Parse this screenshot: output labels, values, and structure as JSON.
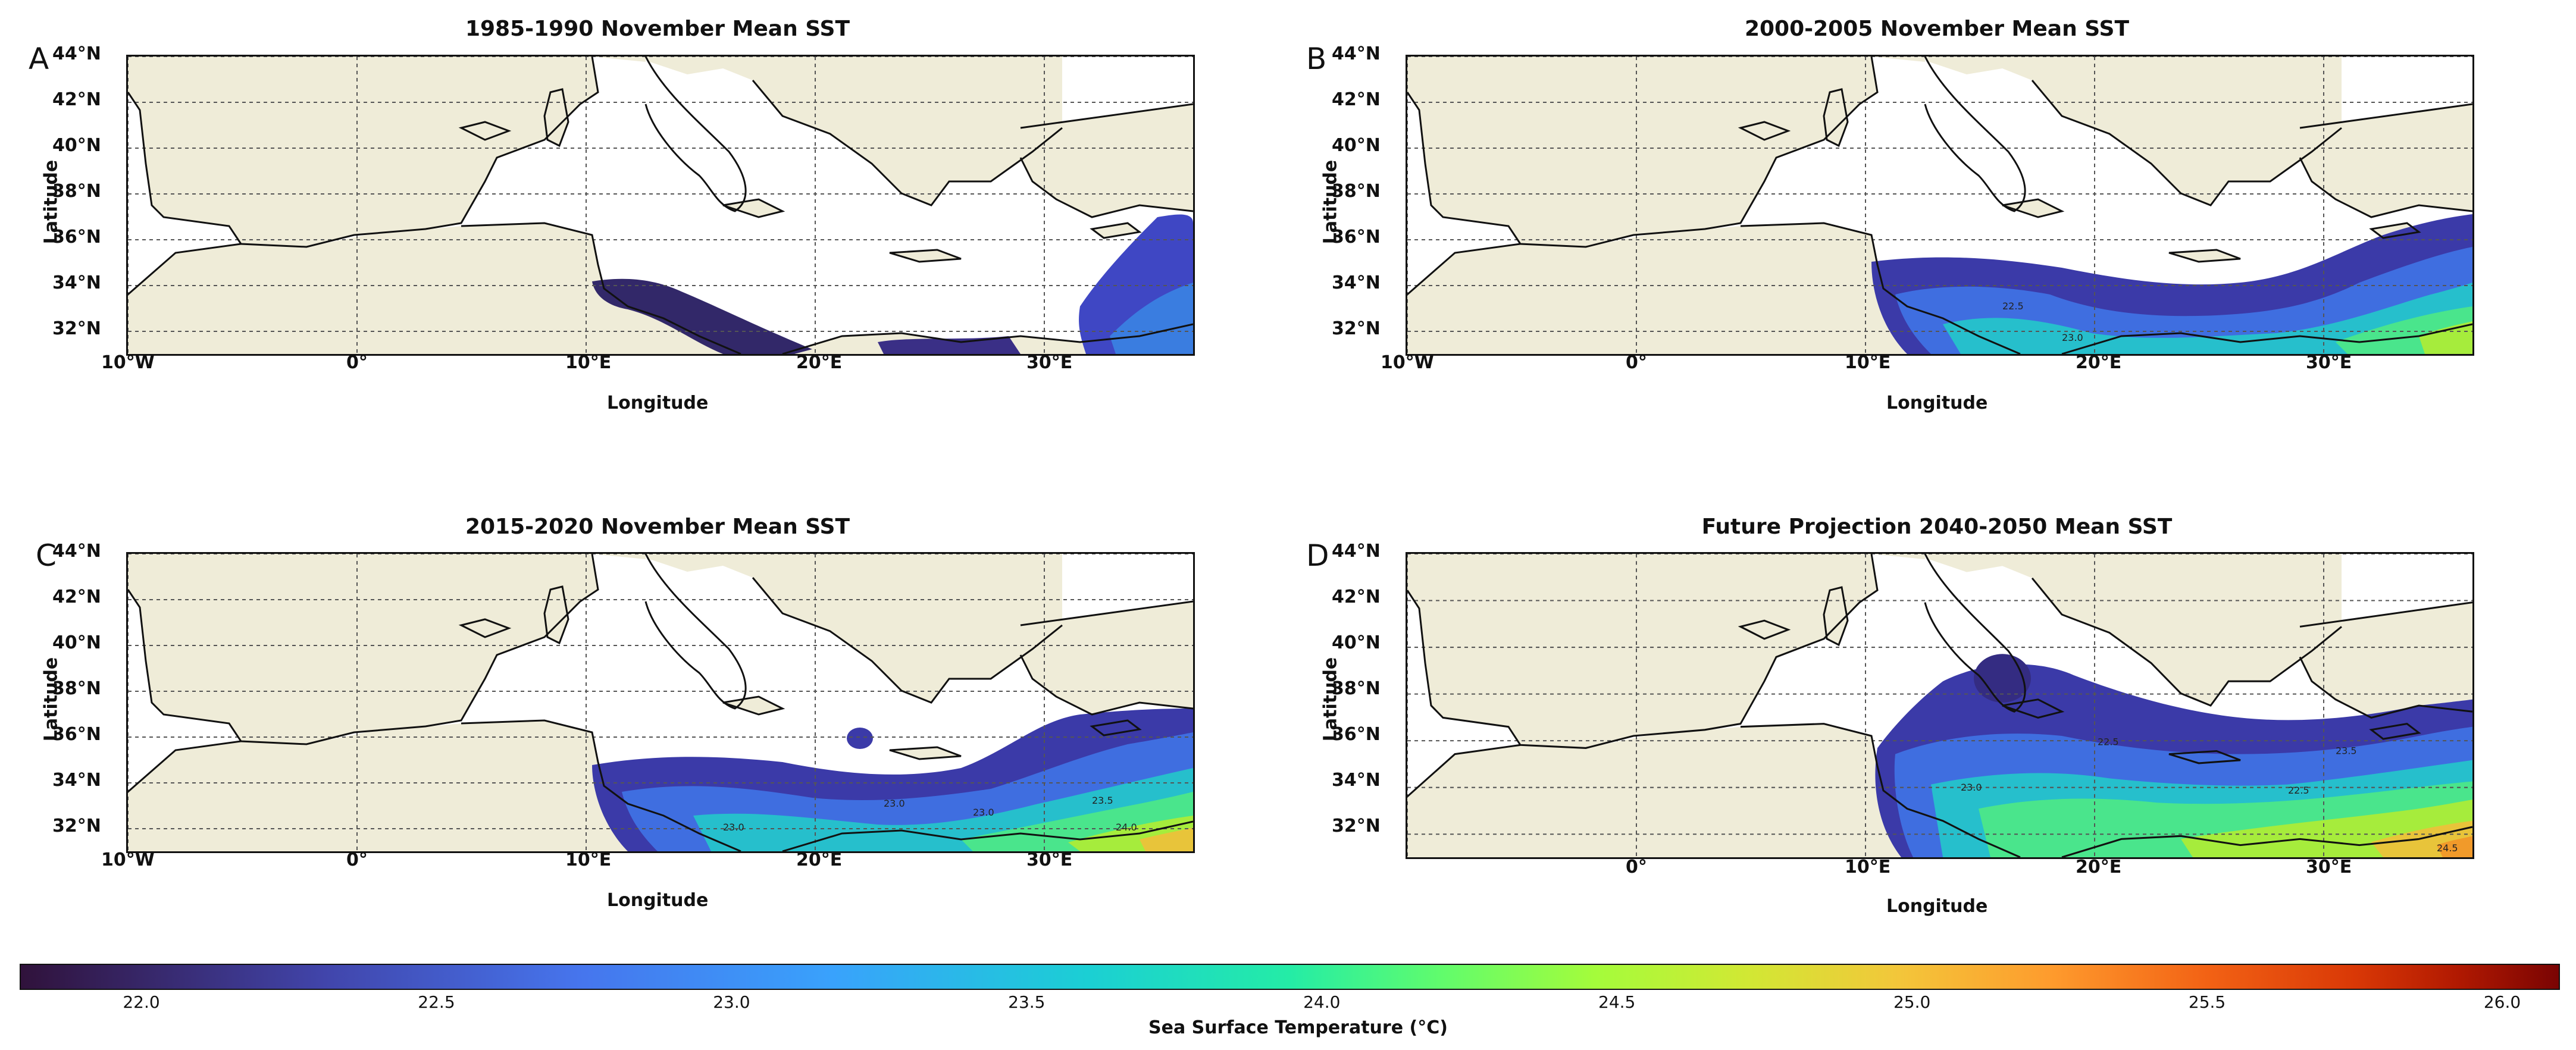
{
  "panels": [
    {
      "letter": "A",
      "title": "1985-1990 November Mean SST",
      "xlabel": "Longitude",
      "ylabel": "Latitude",
      "xticks": [
        "10°W",
        "0°",
        "10°E",
        "20°E",
        "30°E"
      ],
      "yticks": [
        "44°N",
        "42°N",
        "40°N",
        "38°N",
        "36°N",
        "34°N",
        "32°N"
      ],
      "contour_labels": []
    },
    {
      "letter": "B",
      "title": "2000-2005 November Mean SST",
      "xlabel": "Longitude",
      "ylabel": "Latitude",
      "xticks": [
        "10°W",
        "0°",
        "10°E",
        "20°E",
        "30°E"
      ],
      "yticks": [
        "44°N",
        "42°N",
        "40°N",
        "38°N",
        "36°N",
        "34°N",
        "32°N"
      ],
      "contour_labels": [
        "22.5",
        "23.0"
      ]
    },
    {
      "letter": "C",
      "title": "2015-2020 November Mean SST",
      "xlabel": "Longitude",
      "ylabel": "Latitude",
      "xticks": [
        "10°W",
        "0°",
        "10°E",
        "20°E",
        "30°E"
      ],
      "yticks": [
        "44°N",
        "42°N",
        "40°N",
        "38°N",
        "36°N",
        "34°N",
        "32°N"
      ],
      "contour_labels": [
        "23.0",
        "23.5",
        "24.0",
        "23.0",
        "23.0"
      ]
    },
    {
      "letter": "D",
      "title": "Future Projection 2040-2050 Mean SST",
      "xlabel": "Longitude",
      "ylabel": "Latitude",
      "xticks": [
        "0°",
        "10°E",
        "20°E",
        "30°E"
      ],
      "yticks": [
        "44°N",
        "42°N",
        "40°N",
        "38°N",
        "36°N",
        "34°N",
        "32°N"
      ],
      "contour_labels": [
        "23.0",
        "22.5",
        "23.5",
        "22.5",
        "24.5"
      ]
    }
  ],
  "colorbar": {
    "label": "Sea Surface Temperature (°C)",
    "ticks": [
      "22.0",
      "22.5",
      "23.0",
      "23.5",
      "24.0",
      "24.5",
      "25.0",
      "25.5",
      "26.0"
    ],
    "min": 21.8,
    "max": 26.1
  },
  "colors": {
    "land": "#efecd8",
    "sea": "#ffffff",
    "coast": "#111111"
  }
}
